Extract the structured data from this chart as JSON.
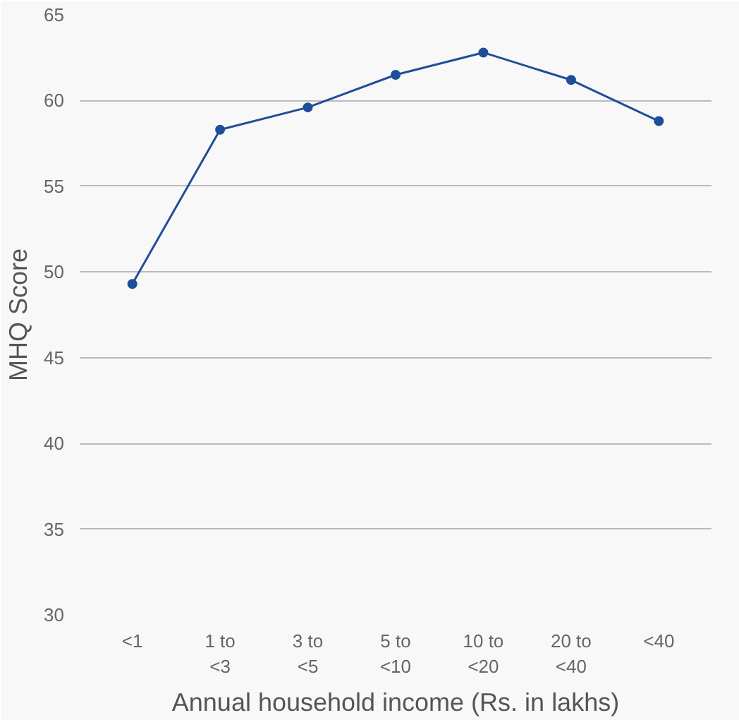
{
  "chart_data": {
    "type": "line",
    "xlabel": "Annual household income (Rs. in lakhs)",
    "ylabel": "MHQ Score",
    "categories": [
      "<1",
      "1 to\n<3",
      "3 to\n<5",
      "5 to\n<10",
      "10 to\n<20",
      "20 to\n<40",
      "<40"
    ],
    "series": [
      {
        "color": "#1f4e99",
        "values": [
          49.3,
          58.3,
          59.6,
          61.5,
          62.8,
          61.2,
          58.8
        ]
      }
    ],
    "ylim": [
      30,
      65
    ],
    "yticks": [
      30,
      35,
      40,
      45,
      50,
      55,
      60,
      65
    ],
    "grid": "y",
    "marker": "circle",
    "line_style": "solid"
  }
}
